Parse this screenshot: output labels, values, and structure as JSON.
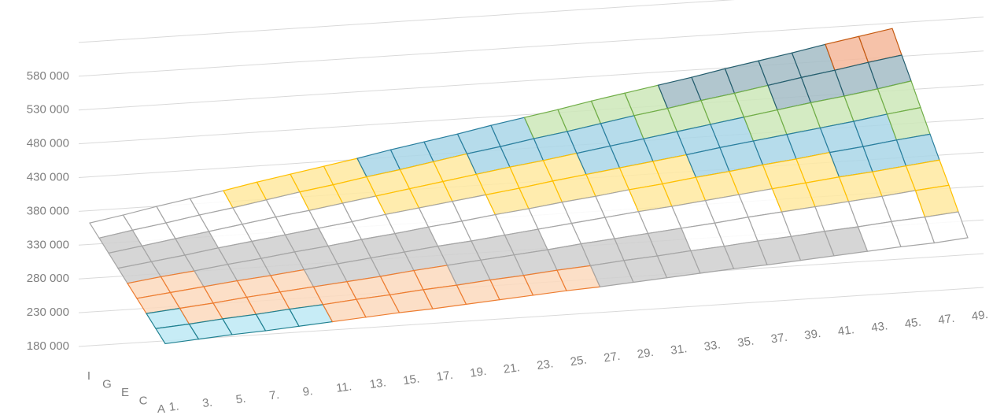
{
  "chart_data": {
    "type": "surface",
    "categories": [
      "1.",
      "3.",
      "5.",
      "7.",
      "9.",
      "11.",
      "13.",
      "15.",
      "17.",
      "19.",
      "21.",
      "23.",
      "25.",
      "27.",
      "29.",
      "31.",
      "33.",
      "35.",
      "37.",
      "39.",
      "41.",
      "43.",
      "45.",
      "47.",
      "49."
    ],
    "series": [
      {
        "name": "A",
        "values": [
          190000,
          196000,
          202000,
          207000,
          213000,
          219000,
          225000,
          231000,
          236000,
          242000,
          248000,
          254000,
          260000,
          265000,
          271000,
          277000,
          283000,
          289000,
          294000,
          300000,
          306000,
          312000,
          318000,
          323000,
          330000
        ]
      },
      {
        "name": null,
        "values": [
          210000,
          216000,
          223000,
          229000,
          236000,
          242000,
          249000,
          255000,
          262000,
          268000,
          275000,
          281000,
          288000,
          294000,
          301000,
          307000,
          314000,
          320000,
          327000,
          333000,
          340000,
          346000,
          353000,
          359000,
          366000
        ]
      },
      {
        "name": "C",
        "values": [
          230000,
          237000,
          244000,
          252000,
          259000,
          266000,
          273000,
          280000,
          288000,
          295000,
          302000,
          309000,
          316000,
          324000,
          331000,
          338000,
          345000,
          352000,
          360000,
          367000,
          374000,
          381000,
          388000,
          396000,
          403000
        ]
      },
      {
        "name": null,
        "values": [
          250000,
          258000,
          266000,
          274000,
          281000,
          289000,
          297000,
          305000,
          313000,
          321000,
          328000,
          336000,
          344000,
          352000,
          360000,
          368000,
          375000,
          383000,
          391000,
          399000,
          407000,
          415000,
          422000,
          430000,
          438000
        ]
      },
      {
        "name": "E",
        "values": [
          270000,
          279000,
          287000,
          296000,
          304000,
          313000,
          321000,
          330000,
          338000,
          347000,
          355000,
          364000,
          372000,
          381000,
          389000,
          398000,
          406000,
          415000,
          423000,
          432000,
          440000,
          449000,
          457000,
          466000,
          474000
        ]
      },
      {
        "name": null,
        "values": [
          290000,
          299000,
          308000,
          318000,
          327000,
          336000,
          345000,
          354000,
          364000,
          373000,
          382000,
          391000,
          400000,
          410000,
          419000,
          428000,
          437000,
          446000,
          456000,
          465000,
          474000,
          483000,
          492000,
          502000,
          511000
        ]
      },
      {
        "name": "G",
        "values": [
          310000,
          320000,
          330000,
          340000,
          350000,
          360000,
          369000,
          379000,
          389000,
          399000,
          409000,
          419000,
          429000,
          438000,
          448000,
          458000,
          468000,
          478000,
          488000,
          498000,
          508000,
          518000,
          527000,
          537000,
          548000
        ]
      },
      {
        "name": null,
        "values": [
          330000,
          341000,
          351000,
          362000,
          372000,
          383000,
          394000,
          404000,
          415000,
          425000,
          436000,
          447000,
          457000,
          468000,
          478000,
          489000,
          500000,
          510000,
          521000,
          531000,
          542000,
          553000,
          563000,
          574000,
          584000
        ]
      },
      {
        "name": "I",
        "values": [
          350000,
          361000,
          373000,
          384000,
          395000,
          407000,
          418000,
          429000,
          440000,
          452000,
          463000,
          474000,
          486000,
          497000,
          508000,
          520000,
          531000,
          542000,
          553000,
          565000,
          576000,
          587000,
          599000,
          610000,
          621000
        ]
      }
    ],
    "ylim": [
      180000,
      630000
    ],
    "yticks": [
      {
        "value": 180000,
        "label": "180 000"
      },
      {
        "value": 230000,
        "label": "230 000"
      },
      {
        "value": 280000,
        "label": "280 000"
      },
      {
        "value": 330000,
        "label": "330 000"
      },
      {
        "value": 380000,
        "label": "380 000"
      },
      {
        "value": 430000,
        "label": "430 000"
      },
      {
        "value": 480000,
        "label": "480 000"
      },
      {
        "value": 530000,
        "label": "530 000"
      },
      {
        "value": 580000,
        "label": "580 000"
      }
    ],
    "grid": true,
    "band_colors": [
      "#bde9f5",
      "#fcd9bd",
      "#cfcfcf",
      "#ffffff",
      "#ffe9a0",
      "#a9d6e8",
      "#cde8b8",
      "#a3bcc6",
      "#f4b79a"
    ],
    "band_edges": [
      "#1f8090",
      "#ed7d31",
      "#a5a5a5",
      "#a5a5a5",
      "#ffc000",
      "#2a7f9e",
      "#70ad47",
      "#255e6e",
      "#c55a11"
    ]
  }
}
